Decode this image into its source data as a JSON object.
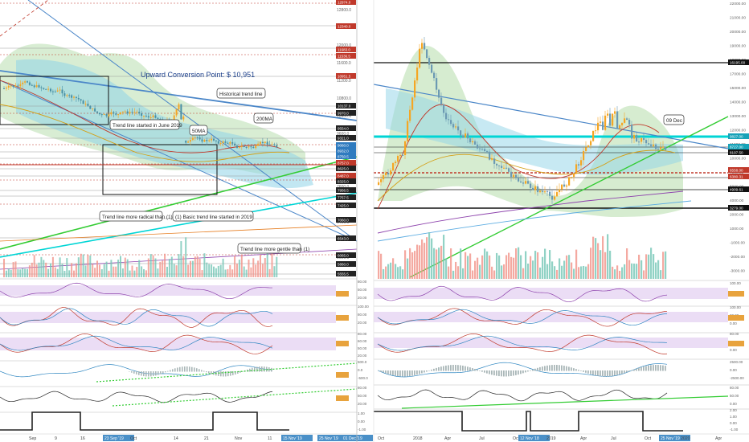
{
  "colors": {
    "up": "#f5a623",
    "down": "#4a90a4",
    "cloud": "#c8e6c0",
    "ichimoku": "#8fd3e8",
    "rsiBand": "#e6d4f2",
    "redLine": "#c0392b",
    "blueLine": "#4a86c8",
    "greenLine": "#33cc33",
    "cyanLine": "#00d5d5",
    "dark": "#222222",
    "priceTag": "#e8a33d"
  },
  "left_panel": {
    "title_annotation": "Upward Conversion Point: $ 10,951",
    "callouts": {
      "historical": "Historical trend line",
      "ma200": "200MA",
      "ma50": "50MA",
      "june": "Trend line started in June 2019",
      "radical": "Trend line more radical than (1)",
      "basic": "(1) Basic trend line started in 2019",
      "gentle": "Trend line more gentle than (1)"
    },
    "price_tags": [
      "12974.0",
      "12340.0",
      "11683.0",
      "11536.5",
      "10951.5",
      "10137.0",
      "9970.0",
      "9554.0",
      "9321.0",
      "9060.0",
      "8932.0",
      "8750.5",
      "8757.0",
      "8625.0",
      "8487.0",
      "8325.0",
      "7956.5",
      "7757.5",
      "7425.0",
      "7060.0",
      "6543.0",
      "6065.0",
      "5860.0",
      "5555.5"
    ],
    "axis_ticks": [
      "12800.0",
      "12400.0",
      "12000.0",
      "11600.0",
      "11200.0",
      "10800.0",
      "10400.0",
      "9600.0",
      "8800.0",
      "8000.0",
      "7600.0",
      "6800.0",
      "6400.0",
      "6000.0",
      "5600.0"
    ],
    "x_ticks": [
      "Sep",
      "9",
      "16",
      "23 Sep '19",
      "Oct",
      "14",
      "21",
      "Nov",
      "11",
      "15 Nov '19",
      "25 Nov '19",
      "01 Dec '19"
    ],
    "sub_ticks": {
      "rsi": [
        "80.00",
        "50.00",
        "20.00"
      ],
      "stoch": [
        "100.00",
        "80.00",
        "20.00"
      ],
      "cci": [
        "80.00",
        "60.00",
        "50.00",
        "20.00"
      ],
      "macd": [
        "500.0",
        "0.0",
        "-500.0"
      ],
      "adx": [
        "80.00",
        "50.00",
        "20.00"
      ],
      "signal": [
        "1.00",
        "0.00",
        "-1.00"
      ]
    }
  },
  "right_panel": {
    "callout": "09 Dec",
    "price_tags": [
      "16195.00",
      "9827.00",
      "8727.00",
      "8197.50",
      "6558.00",
      "6380.31",
      "4909.61",
      "3279.00"
    ],
    "axis_ticks": [
      "22000.00",
      "21000.00",
      "20000.00",
      "19000.00",
      "18000.00",
      "17000.00",
      "15000.00",
      "14000.00",
      "13000.00",
      "12000.00",
      "11000.00",
      "10000.00",
      "7000.00",
      "5000.00",
      "4000.00",
      "2000.00",
      "1000.00",
      "-1000.00",
      "-2000.00",
      "-3000.00"
    ],
    "x_ticks": [
      "Oct",
      "2018",
      "Apr",
      "Jul",
      "Oct",
      "12 Nov '18",
      "2019",
      "Apr",
      "Jul",
      "Oct",
      "25 Nov '19",
      "2020",
      "Apr"
    ],
    "sub_ticks": {
      "rsi": [
        "100.00",
        "50.00"
      ],
      "stoch": [
        "100.00",
        "80.00",
        "0.00"
      ],
      "cci": [
        "80.00",
        "50.00",
        "0.00"
      ],
      "macd": [
        "2500.00",
        "0.00",
        "-2500.00"
      ],
      "adx": [
        "80.00",
        "50.00",
        "0.00"
      ],
      "signal": [
        "2.00",
        "1.00",
        "0.00",
        "-1.00"
      ]
    }
  }
}
